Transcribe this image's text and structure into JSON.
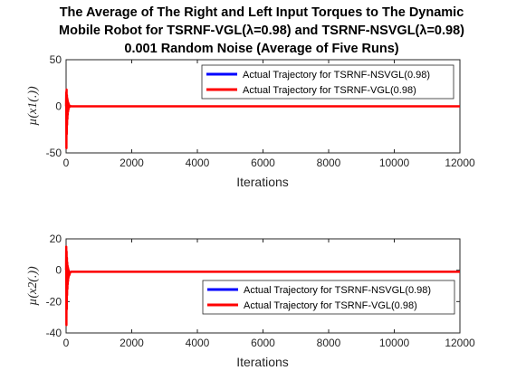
{
  "title_lines": [
    "The Average of The Right and Left Input Torques to The Dynamic",
    "Mobile Robot for TSRNF-VGL(λ=0.98) and TSRNF-NSVGL(λ=0.98)",
    "0.001 Random Noise (Average of Five Runs)"
  ],
  "colors": {
    "nsvgl": "#0000ff",
    "vgl": "#ff0000",
    "vgl_transient": "#ff9a9a"
  },
  "chart_data": [
    {
      "type": "line",
      "xlabel": "Iterations",
      "ylabel": "µ(x1(.))",
      "xlim": [
        0,
        12000
      ],
      "ylim": [
        -50,
        50
      ],
      "xticks": [
        0,
        2000,
        4000,
        6000,
        8000,
        10000,
        12000
      ],
      "yticks": [
        -50,
        0,
        50
      ],
      "grid": false,
      "legend_position": "top-right",
      "series": [
        {
          "name": "Actual Trajectory for TSRNF-NSVGL(0.98)",
          "color": "#0000ff",
          "x": [
            0,
            10,
            20,
            40,
            60,
            80,
            100,
            150,
            200,
            12000
          ],
          "y": [
            0,
            3,
            -4,
            2,
            -1,
            0.5,
            0,
            0,
            0,
            0
          ]
        },
        {
          "name": "Actual Trajectory for TSRNF-VGL(0.98)",
          "color": "#ff0000",
          "x": [
            0,
            5,
            10,
            15,
            20,
            25,
            30,
            35,
            40,
            45,
            50,
            55,
            60,
            65,
            70,
            75,
            80,
            90,
            100,
            120,
            150,
            200,
            12000
          ],
          "y": [
            0,
            15,
            -45,
            18,
            -30,
            12,
            -20,
            9,
            -14,
            7,
            -9,
            5,
            -6,
            4,
            -4,
            3,
            -2,
            1.5,
            -1,
            0.5,
            0,
            0,
            0
          ]
        }
      ]
    },
    {
      "type": "line",
      "xlabel": "Iterations",
      "ylabel": "µ(x2(.))",
      "xlim": [
        0,
        12000
      ],
      "ylim": [
        -40,
        20
      ],
      "xticks": [
        0,
        2000,
        4000,
        6000,
        8000,
        10000,
        12000
      ],
      "yticks": [
        -40,
        -20,
        0,
        20
      ],
      "grid": false,
      "legend_position": "bottom-right",
      "series": [
        {
          "name": "Actual Trajectory for TSRNF-NSVGL(0.98)",
          "color": "#0000ff",
          "x": [
            0,
            10,
            20,
            40,
            60,
            80,
            100,
            150,
            200,
            12000
          ],
          "y": [
            0,
            2,
            -3,
            1,
            -2,
            -1,
            -1,
            -1,
            -1,
            -1
          ]
        },
        {
          "name": "Actual Trajectory for TSRNF-VGL(0.98)",
          "color": "#ff0000",
          "x": [
            0,
            5,
            10,
            15,
            20,
            25,
            30,
            35,
            40,
            45,
            50,
            55,
            60,
            65,
            70,
            75,
            80,
            90,
            100,
            120,
            150,
            200,
            12000
          ],
          "y": [
            0,
            15,
            -35,
            12,
            -25,
            8,
            -16,
            5,
            -12,
            3,
            -9,
            2,
            -7,
            1,
            -5,
            0,
            -4,
            -2,
            -3,
            -1.5,
            -1,
            -1,
            -1
          ]
        }
      ]
    }
  ]
}
